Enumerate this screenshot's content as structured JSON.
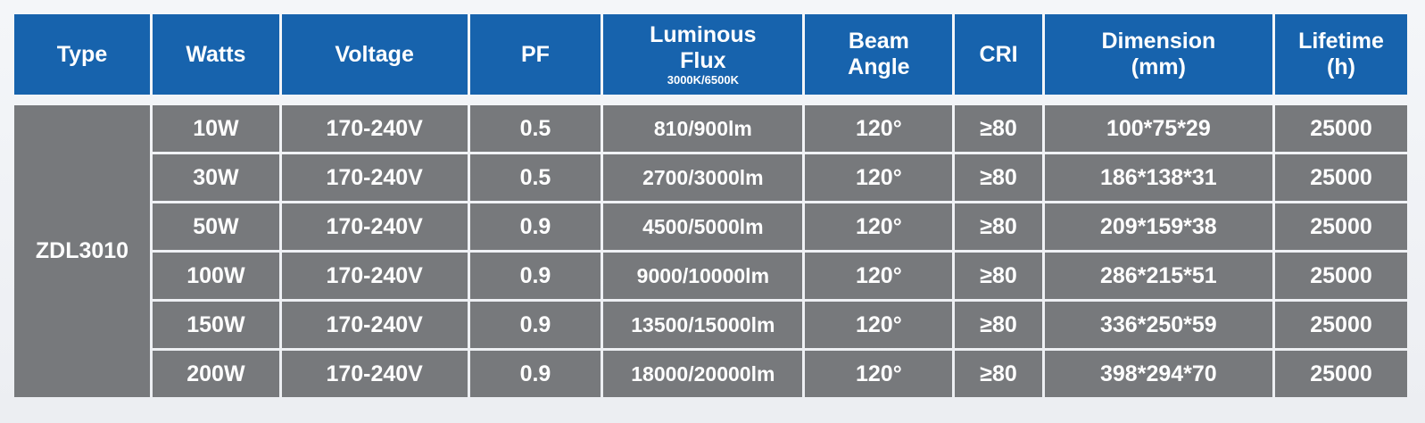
{
  "headers": {
    "type": "Type",
    "watts": "Watts",
    "voltage": "Voltage",
    "pf": "PF",
    "flux_line1": "Luminous",
    "flux_line2": "Flux",
    "flux_sub": "3000K/6500K",
    "beam_line1": "Beam",
    "beam_line2": "Angle",
    "cri": "CRI",
    "dim_line1": "Dimension",
    "dim_line2": "(mm)",
    "life_line1": "Lifetime",
    "life_line2": "(h)"
  },
  "type_value": "ZDL3010",
  "rows": [
    {
      "watts": "10W",
      "voltage": "170-240V",
      "pf": "0.5",
      "flux": "810/900lm",
      "beam": "120°",
      "cri": "≥80",
      "dimension": "100*75*29",
      "lifetime": "25000"
    },
    {
      "watts": "30W",
      "voltage": "170-240V",
      "pf": "0.5",
      "flux": "2700/3000lm",
      "beam": "120°",
      "cri": "≥80",
      "dimension": "186*138*31",
      "lifetime": "25000"
    },
    {
      "watts": "50W",
      "voltage": "170-240V",
      "pf": "0.9",
      "flux": "4500/5000lm",
      "beam": "120°",
      "cri": "≥80",
      "dimension": "209*159*38",
      "lifetime": "25000"
    },
    {
      "watts": "100W",
      "voltage": "170-240V",
      "pf": "0.9",
      "flux": "9000/10000lm",
      "beam": "120°",
      "cri": "≥80",
      "dimension": "286*215*51",
      "lifetime": "25000"
    },
    {
      "watts": "150W",
      "voltage": "170-240V",
      "pf": "0.9",
      "flux": "13500/15000lm",
      "beam": "120°",
      "cri": "≥80",
      "dimension": "336*250*59",
      "lifetime": "25000"
    },
    {
      "watts": "200W",
      "voltage": "170-240V",
      "pf": "0.9",
      "flux": "18000/20000lm",
      "beam": "120°",
      "cri": "≥80",
      "dimension": "398*294*70",
      "lifetime": "25000"
    }
  ]
}
